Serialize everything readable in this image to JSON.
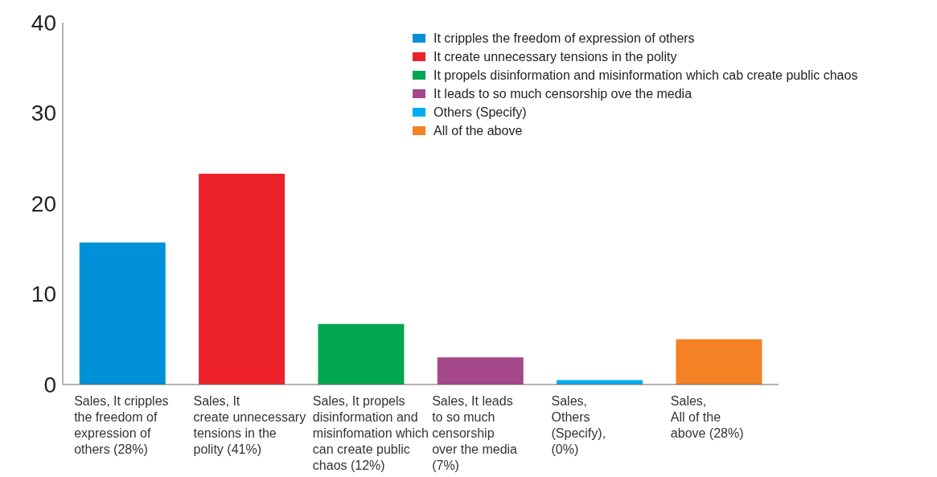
{
  "chart_data": {
    "type": "bar",
    "categories": [
      "Sales, It cripples\nthe freedom of\nexpression of\nothers (28%)",
      "Sales, It\ncreate unnecessary\ntensions in the\npolity (41%)",
      "Sales, It propels\ndisinformation and\nmisinfomation which\ncan create public\nchaos (12%)",
      "Sales, It leads\nto so much\ncensorship\nover the media\n(7%)",
      "Sales,\nOthers\n(Specify),\n(0%)",
      "Sales,\nAll of the\nabove (28%)"
    ],
    "series": [
      {
        "name": "It cripples the freedom of expression of others",
        "color": "#0091d8",
        "values": [
          15.7,
          null,
          null,
          null,
          null,
          null
        ]
      },
      {
        "name": "It create unnecessary tensions in the polity",
        "color": "#ec2129",
        "values": [
          null,
          23.3,
          null,
          null,
          null,
          null
        ]
      },
      {
        "name": "It propels disinformation and misinformation which cab create public chaos",
        "color": "#00a650",
        "values": [
          null,
          null,
          6.7,
          null,
          null,
          null
        ]
      },
      {
        "name": "It leads to so much censorship ove the media",
        "color": "#a4488a",
        "values": [
          null,
          null,
          null,
          3,
          null,
          null
        ]
      },
      {
        "name": "Others (Specify)",
        "color": "#00aeef",
        "values": [
          null,
          null,
          null,
          null,
          0.5,
          null
        ]
      },
      {
        "name": "All of the above",
        "color": "#f48124",
        "values": [
          null,
          null,
          null,
          null,
          null,
          5
        ]
      }
    ],
    "ylim": [
      0,
      40
    ],
    "yticks": [
      0,
      10,
      20,
      30,
      40
    ],
    "grid": false,
    "legend": "top right"
  }
}
